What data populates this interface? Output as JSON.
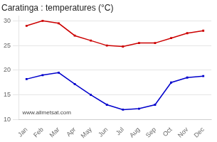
{
  "chart_data": {
    "type": "line",
    "title": "Caratinga : temperatures (°C)",
    "categories": [
      "Jan",
      "Feb",
      "Mar",
      "Apr",
      "May",
      "Jun",
      "Jul",
      "Aug",
      "Sep",
      "Oct",
      "Nov",
      "Dec"
    ],
    "series": [
      {
        "color": "#cc0000",
        "marker": "square",
        "values": [
          29,
          30,
          29.5,
          27,
          26,
          25,
          24.8,
          25.5,
          25.5,
          26.5,
          27.5,
          28
        ]
      },
      {
        "color": "#0000cc",
        "marker": "square",
        "values": [
          18.2,
          19,
          19.5,
          17.2,
          15,
          13,
          12,
          12.2,
          13,
          17.5,
          18.5,
          18.8
        ]
      }
    ],
    "ylim": [
      10,
      31
    ],
    "yticks": [
      10,
      15,
      20,
      25,
      30
    ],
    "grid": "y",
    "annotations": [
      "www.allmetsat.com"
    ]
  }
}
